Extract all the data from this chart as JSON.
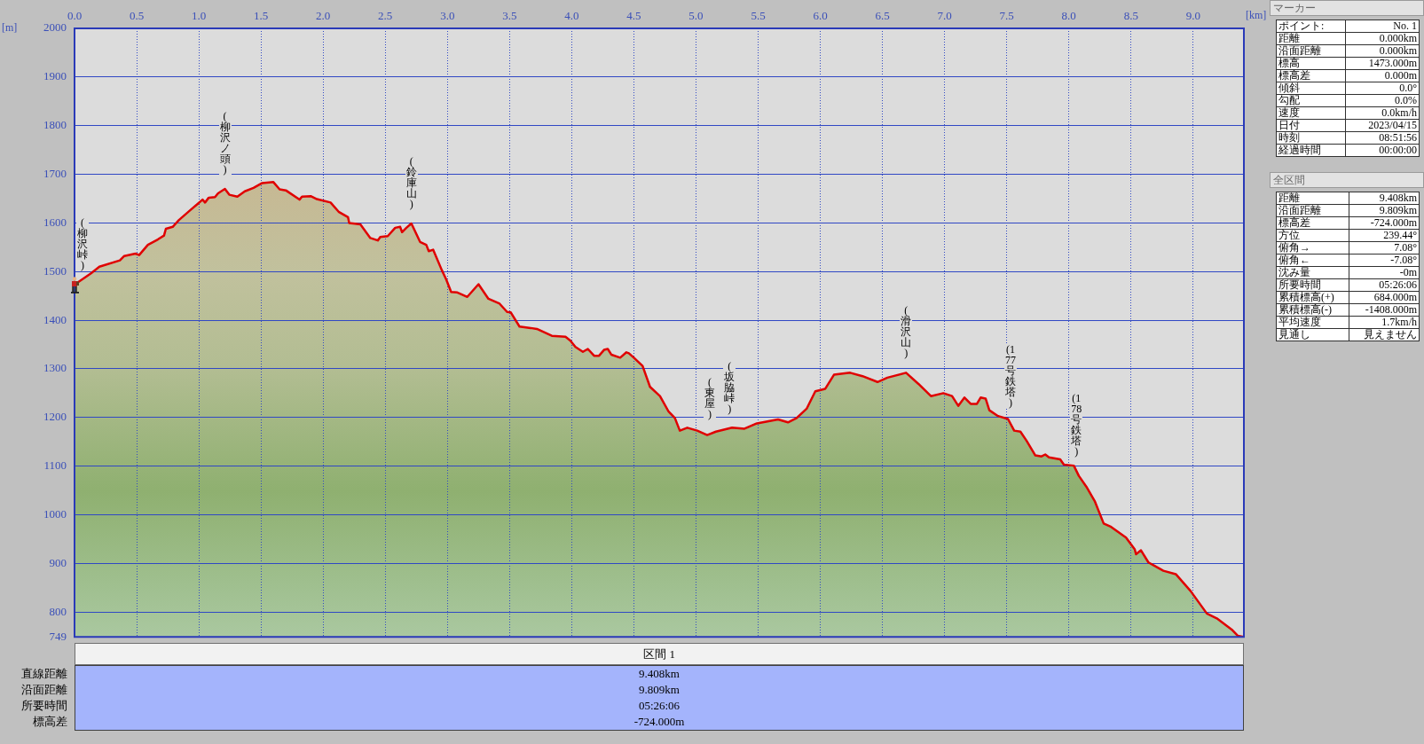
{
  "chart_data": [
    {
      "type": "area",
      "xlabel": "[km]",
      "ylabel": "[m]",
      "color": "#e00000",
      "x": [
        0,
        0.135,
        0.2,
        0.365,
        0.4,
        0.49,
        0.52,
        0.59,
        0.67,
        0.72,
        0.735,
        0.79,
        0.84,
        0.93,
        0.99,
        1.03,
        1.05,
        1.08,
        1.13,
        1.155,
        1.21,
        1.245,
        1.31,
        1.37,
        1.44,
        1.51,
        1.6,
        1.65,
        1.7,
        1.81,
        1.83,
        1.9,
        1.95,
        2.06,
        2.125,
        2.2,
        2.21,
        2.3,
        2.38,
        2.44,
        2.46,
        2.52,
        2.58,
        2.62,
        2.635,
        2.67,
        2.71,
        2.78,
        2.83,
        2.85,
        2.885,
        2.955,
        2.99,
        3.03,
        3.08,
        3.16,
        3.25,
        3.33,
        3.42,
        3.48,
        3.51,
        3.58,
        3.67,
        3.72,
        3.84,
        3.95,
        3.99,
        4.03,
        4.09,
        4.13,
        4.18,
        4.22,
        4.26,
        4.29,
        4.32,
        4.39,
        4.44,
        4.46,
        4.5,
        4.57,
        4.63,
        4.71,
        4.78,
        4.83,
        4.87,
        4.93,
        5.01,
        5.09,
        5.16,
        5.29,
        5.39,
        5.49,
        5.66,
        5.74,
        5.81,
        5.89,
        5.96,
        6.04,
        6.11,
        6.24,
        6.34,
        6.46,
        6.54,
        6.69,
        6.79,
        6.89,
        6.99,
        7.06,
        7.11,
        7.16,
        7.21,
        7.26,
        7.29,
        7.33,
        7.36,
        7.43,
        7.51,
        7.56,
        7.61,
        7.66,
        7.73,
        7.78,
        7.81,
        7.84,
        7.93,
        7.96,
        8.04,
        8.08,
        8.14,
        8.21,
        8.28,
        8.34,
        8.46,
        8.53,
        8.54,
        8.58,
        8.64,
        8.69,
        8.76,
        8.86,
        8.98,
        9.11,
        9.19,
        9.31,
        9.36,
        9.408
      ],
      "values": [
        1473,
        1497,
        1510,
        1523,
        1532,
        1537,
        1534,
        1555,
        1566,
        1574,
        1588,
        1592,
        1606,
        1626,
        1639,
        1648,
        1642,
        1652,
        1653,
        1661,
        1670,
        1658,
        1654,
        1665,
        1672,
        1682,
        1684,
        1669,
        1667,
        1648,
        1654,
        1655,
        1649,
        1642,
        1623,
        1612,
        1600,
        1597,
        1569,
        1564,
        1571,
        1573,
        1590,
        1592,
        1581,
        1590,
        1599,
        1561,
        1555,
        1542,
        1545,
        1503,
        1484,
        1458,
        1457,
        1448,
        1474,
        1444,
        1434,
        1417,
        1416,
        1387,
        1384,
        1382,
        1368,
        1366,
        1358,
        1345,
        1335,
        1341,
        1327,
        1327,
        1339,
        1341,
        1329,
        1323,
        1334,
        1332,
        1323,
        1306,
        1263,
        1244,
        1212,
        1199,
        1173,
        1179,
        1173,
        1164,
        1171,
        1179,
        1177,
        1188,
        1196,
        1190,
        1199,
        1218,
        1254,
        1259,
        1288,
        1292,
        1285,
        1273,
        1282,
        1292,
        1269,
        1244,
        1250,
        1244,
        1224,
        1241,
        1228,
        1228,
        1241,
        1239,
        1215,
        1203,
        1197,
        1173,
        1171,
        1152,
        1122,
        1120,
        1124,
        1118,
        1114,
        1103,
        1101,
        1080,
        1058,
        1027,
        982,
        975,
        953,
        929,
        919,
        927,
        902,
        895,
        885,
        878,
        843,
        797,
        787,
        764,
        751,
        749
      ],
      "xlim": [
        0,
        9.408
      ],
      "ylim": [
        749,
        2000
      ],
      "xticks": [
        {
          "value": 0,
          "label": "0.0"
        },
        0.5,
        {
          "value": 1,
          "label": "1.0"
        },
        1.5,
        {
          "value": 2,
          "label": "2.0"
        },
        2.5,
        {
          "value": 3,
          "label": "3.0"
        },
        3.5,
        {
          "value": 4,
          "label": "4.0"
        },
        4.5,
        {
          "value": 5,
          "label": "5.0"
        },
        5.5,
        {
          "value": 6,
          "label": "6.0"
        },
        6.5,
        {
          "value": 7,
          "label": "7.0"
        },
        7.5,
        {
          "value": 8,
          "label": "8.0"
        },
        8.5,
        {
          "value": 9,
          "label": "9.0"
        }
      ],
      "yticks": [
        749,
        800,
        900,
        1000,
        1100,
        1200,
        1300,
        1400,
        1500,
        1600,
        1700,
        1800,
        1900,
        2000
      ],
      "grid": true,
      "annotations": [
        {
          "text": "(柳沢峠)",
          "x": 0,
          "y": 1473
        },
        {
          "text": "(柳沢ノ頭)",
          "x": 1.21,
          "y": 1670
        },
        {
          "text": "(鈴庫山)",
          "x": 2.71,
          "y": 1599
        },
        {
          "text": "(東屋)",
          "x": 5.11,
          "y": 1166
        },
        {
          "text": "(坂脇峠)",
          "x": 5.27,
          "y": 1178
        },
        {
          "text": "(滑沢山)",
          "x": 6.69,
          "y": 1292
        },
        {
          "text": "(177号鉄塔)",
          "x": 7.53,
          "y": 1190
        },
        {
          "text": "(178号鉄塔)",
          "x": 8.06,
          "y": 1090
        }
      ]
    },
    {
      "type": "other",
      "title": "マーカー",
      "annotations": [
        "ポイント:",
        "No. 1",
        "距離",
        "0.000km",
        "沿面距離",
        "0.000km",
        "標高",
        "1473.000m",
        "標高差",
        "0.000m",
        "傾斜",
        "0.0°",
        "勾配",
        "0.0%",
        "速度",
        "0.0km/h",
        "日付",
        "2023/04/15",
        "時刻",
        "08:51:56",
        "経過時間",
        "00:00:00"
      ]
    },
    {
      "type": "other",
      "title": "全区間",
      "annotations": [
        "距離",
        "9.408km",
        "沿面距離",
        "9.809km",
        "標高差",
        "-724.000m",
        "方位",
        "239.44°",
        "俯角→",
        "7.08°",
        "俯角←",
        "-7.08°",
        "沈み量",
        "-0m",
        "所要時間",
        "05:26:06",
        "累積標高(+)",
        "684.000m",
        "累積標高(-)",
        "-1408.000m",
        "平均速度",
        "1.7km/h",
        "見通し",
        "見えません"
      ]
    },
    {
      "type": "other",
      "title": "区間 1",
      "annotations": [
        "直線距離",
        "9.408km",
        "沿面距離",
        "9.809km",
        "所要時間",
        "05:26:06",
        "標高差",
        "-724.000m"
      ]
    }
  ]
}
